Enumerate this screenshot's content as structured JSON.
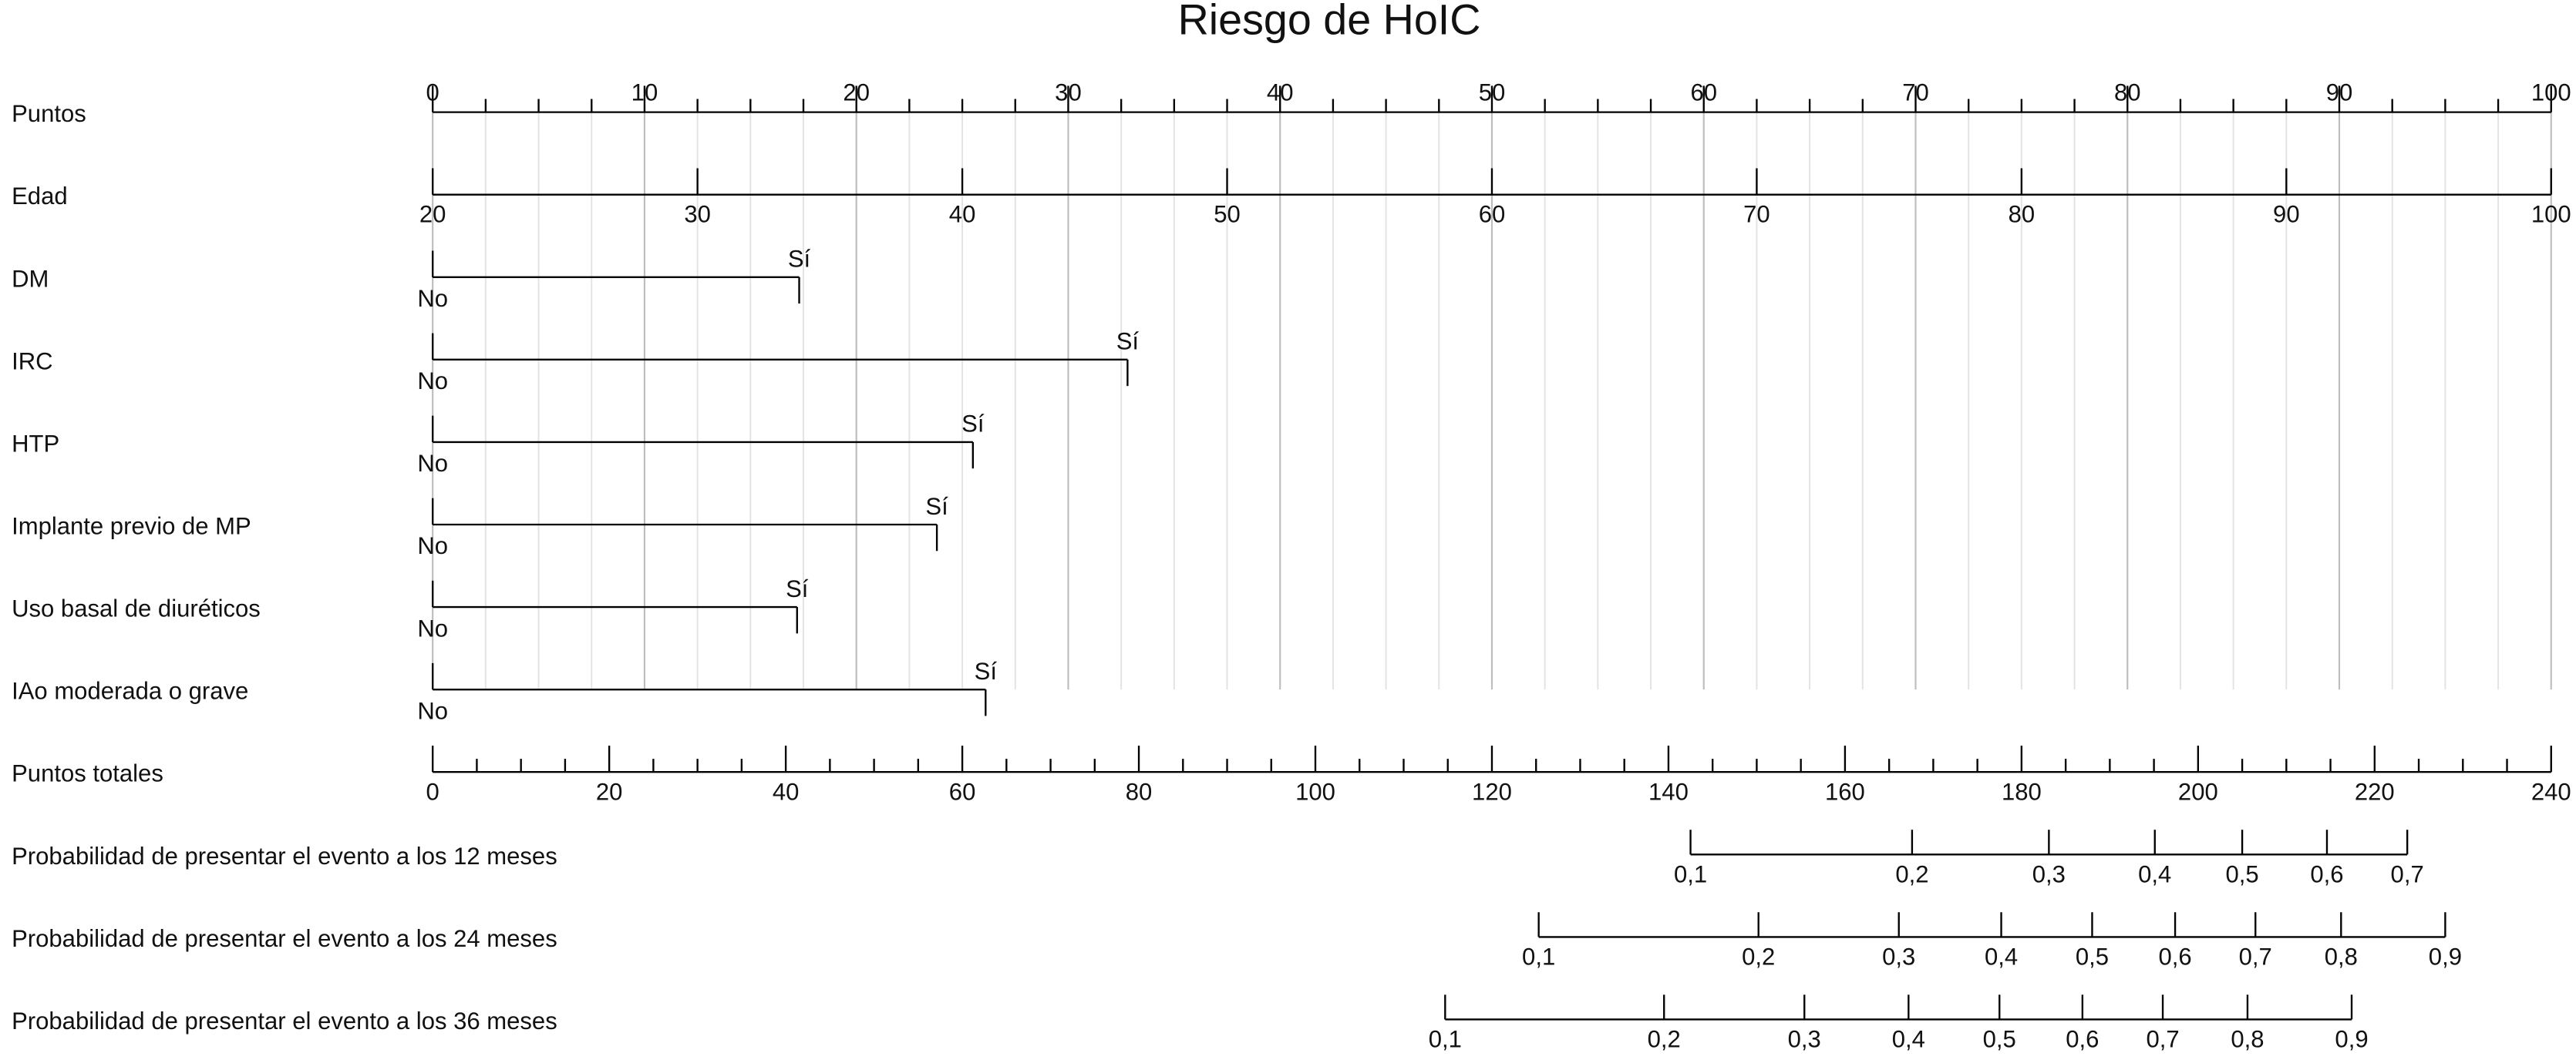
{
  "chart_data": {
    "type": "nomogram",
    "title": "Riesgo de HoIC",
    "points": {
      "label": "Puntos",
      "xlim": [
        0,
        100
      ],
      "xticks": [
        0,
        10,
        20,
        30,
        40,
        50,
        60,
        70,
        80,
        90,
        100
      ],
      "minor_ticks": [
        2.5,
        5,
        7.5,
        12.5,
        15,
        17.5,
        22.5,
        25,
        27.5,
        32.5,
        35,
        37.5,
        42.5,
        45,
        47.5,
        52.5,
        55,
        57.5,
        62.5,
        65,
        67.5,
        72.5,
        75,
        77.5,
        82.5,
        85,
        87.5,
        92.5,
        95,
        97.5
      ]
    },
    "variables": [
      {
        "label": "Edad",
        "ticks": [
          {
            "value": 20,
            "at": 0
          },
          {
            "value": 30,
            "at": 12.5
          },
          {
            "value": 40,
            "at": 25
          },
          {
            "value": 50,
            "at": 37.5
          },
          {
            "value": 60,
            "at": 50
          },
          {
            "value": 70,
            "at": 62.5
          },
          {
            "value": 80,
            "at": 75
          },
          {
            "value": 90,
            "at": 87.5
          },
          {
            "value": 100,
            "at": 100
          }
        ]
      },
      {
        "label": "DM",
        "ticks": [
          {
            "label": "No",
            "at": 0
          },
          {
            "label": "Sí",
            "at": 17.3
          }
        ]
      },
      {
        "label": "IRC",
        "ticks": [
          {
            "label": "No",
            "at": 0
          },
          {
            "label": "Sí",
            "at": 32.8
          }
        ]
      },
      {
        "label": "HTP",
        "ticks": [
          {
            "label": "No",
            "at": 0
          },
          {
            "label": "Sí",
            "at": 25.5
          }
        ]
      },
      {
        "label": "Implante previo de MP",
        "ticks": [
          {
            "label": "No",
            "at": 0
          },
          {
            "label": "Sí",
            "at": 23.8
          }
        ]
      },
      {
        "label": "Uso basal de diuréticos",
        "ticks": [
          {
            "label": "No",
            "at": 0
          },
          {
            "label": "Sí",
            "at": 17.2
          }
        ]
      },
      {
        "label": "IAo moderada o grave",
        "ticks": [
          {
            "label": "No",
            "at": 0
          },
          {
            "label": "Sí",
            "at": 26.1
          }
        ]
      }
    ],
    "total_points": {
      "label": "Puntos totales",
      "xlim": [
        0,
        240
      ],
      "xticks": [
        0,
        20,
        40,
        60,
        80,
        100,
        120,
        140,
        160,
        180,
        200,
        220,
        240
      ],
      "minor_ticks": [
        5,
        10,
        15,
        25,
        30,
        35,
        45,
        50,
        55,
        65,
        70,
        75,
        85,
        90,
        95,
        105,
        110,
        115,
        125,
        130,
        135,
        145,
        150,
        155,
        165,
        170,
        175,
        185,
        190,
        195,
        205,
        210,
        215,
        225,
        230,
        235
      ]
    },
    "probabilities": [
      {
        "label": "Probabilidad de presentar el evento a los 12 meses",
        "ticks": [
          {
            "value": 0.1,
            "label": "0,1",
            "at": 142.5
          },
          {
            "value": 0.2,
            "label": "0,2",
            "at": 167.6
          },
          {
            "value": 0.3,
            "label": "0,3",
            "at": 183.1
          },
          {
            "value": 0.4,
            "label": "0,4",
            "at": 195.1
          },
          {
            "value": 0.5,
            "label": "0,5",
            "at": 205.0
          },
          {
            "value": 0.6,
            "label": "0,6",
            "at": 214.6
          },
          {
            "value": 0.7,
            "label": "0,7",
            "at": 223.7
          }
        ]
      },
      {
        "label": "Probabilidad de presentar el evento a los 24 meses",
        "ticks": [
          {
            "value": 0.1,
            "label": "0,1",
            "at": 125.3
          },
          {
            "value": 0.2,
            "label": "0,2",
            "at": 150.2
          },
          {
            "value": 0.3,
            "label": "0,3",
            "at": 166.1
          },
          {
            "value": 0.4,
            "label": "0,4",
            "at": 177.7
          },
          {
            "value": 0.5,
            "label": "0,5",
            "at": 188.0
          },
          {
            "value": 0.6,
            "label": "0,6",
            "at": 197.4
          },
          {
            "value": 0.7,
            "label": "0,7",
            "at": 206.5
          },
          {
            "value": 0.8,
            "label": "0,8",
            "at": 216.2
          },
          {
            "value": 0.9,
            "label": "0,9",
            "at": 228.0
          }
        ]
      },
      {
        "label": "Probabilidad de presentar el evento a los 36 meses",
        "ticks": [
          {
            "value": 0.1,
            "label": "0,1",
            "at": 114.7
          },
          {
            "value": 0.2,
            "label": "0,2",
            "at": 139.5
          },
          {
            "value": 0.3,
            "label": "0,3",
            "at": 155.4
          },
          {
            "value": 0.4,
            "label": "0,4",
            "at": 167.2
          },
          {
            "value": 0.5,
            "label": "0,5",
            "at": 177.5
          },
          {
            "value": 0.6,
            "label": "0,6",
            "at": 186.9
          },
          {
            "value": 0.7,
            "label": "0,7",
            "at": 196.0
          },
          {
            "value": 0.8,
            "label": "0,8",
            "at": 205.6
          },
          {
            "value": 0.9,
            "label": "0,9",
            "at": 217.4
          }
        ]
      }
    ]
  }
}
